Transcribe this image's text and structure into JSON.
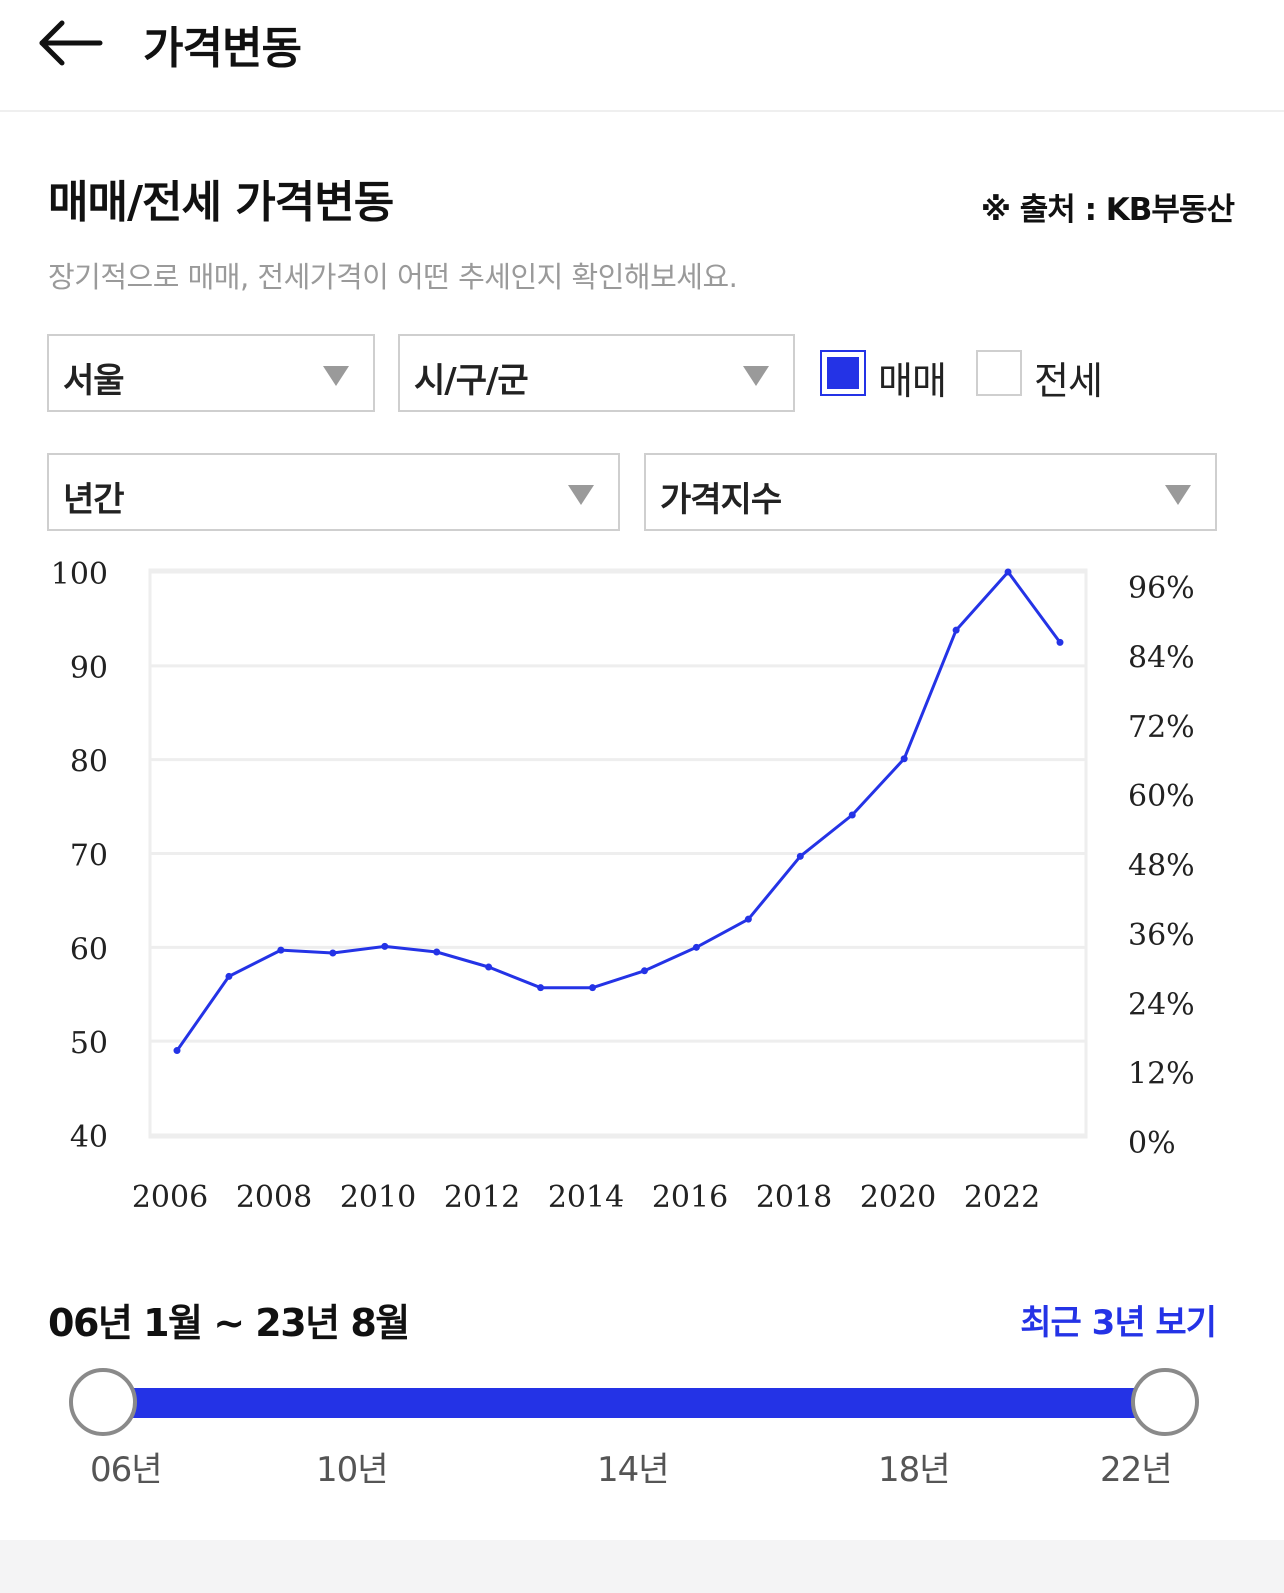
{
  "header": {
    "title": "가격변동",
    "back_icon": "arrow-left-icon"
  },
  "section": {
    "title": "매매/전세 가격변동",
    "source": "※ 출처 : KB부동산",
    "description": "장기적으로 매매, 전세가격이 어떤 추세인지 확인해보세요."
  },
  "filters": {
    "region": "서울",
    "district": "시/구/군",
    "period": "년간",
    "metric": "가격지수",
    "maemae_label": "매매",
    "maemae_checked": true,
    "jeonse_label": "전세",
    "jeonse_checked": false
  },
  "colors": {
    "accent": "#2433e6",
    "grid": "#eeeeee",
    "muted": "#9a9a9a"
  },
  "chart_data": {
    "type": "line",
    "title": "",
    "xlabel": "",
    "ylabel": "",
    "x": [
      2006,
      2007,
      2008,
      2009,
      2010,
      2011,
      2012,
      2013,
      2014,
      2015,
      2016,
      2017,
      2018,
      2019,
      2020,
      2021,
      2022,
      2023
    ],
    "series": [
      {
        "name": "매매",
        "values": [
          49,
          56.9,
          59.7,
          59.4,
          60.1,
          59.5,
          57.9,
          55.7,
          55.7,
          57.5,
          60.0,
          63.0,
          69.7,
          74.1,
          80.1,
          93.8,
          100.0,
          92.5
        ]
      }
    ],
    "ylim": [
      40,
      100
    ],
    "y_ticks": [
      "40",
      "50",
      "60",
      "70",
      "80",
      "90",
      "100"
    ],
    "y2_ticks": [
      "96%",
      "84%",
      "72%",
      "60%",
      "48%",
      "36%",
      "24%",
      "12%",
      "0%"
    ],
    "x_tick_labels": [
      "2006",
      "2008",
      "2010",
      "2012",
      "2014",
      "2016",
      "2018",
      "2020",
      "2022"
    ],
    "grid": true,
    "legend": "none"
  },
  "range": {
    "label": "06년 1월 ~ 23년 8월",
    "recent_button": "최근 3년 보기",
    "start": 0,
    "end": 1,
    "ticks": [
      "06년",
      "10년",
      "14년",
      "18년",
      "22년"
    ]
  }
}
